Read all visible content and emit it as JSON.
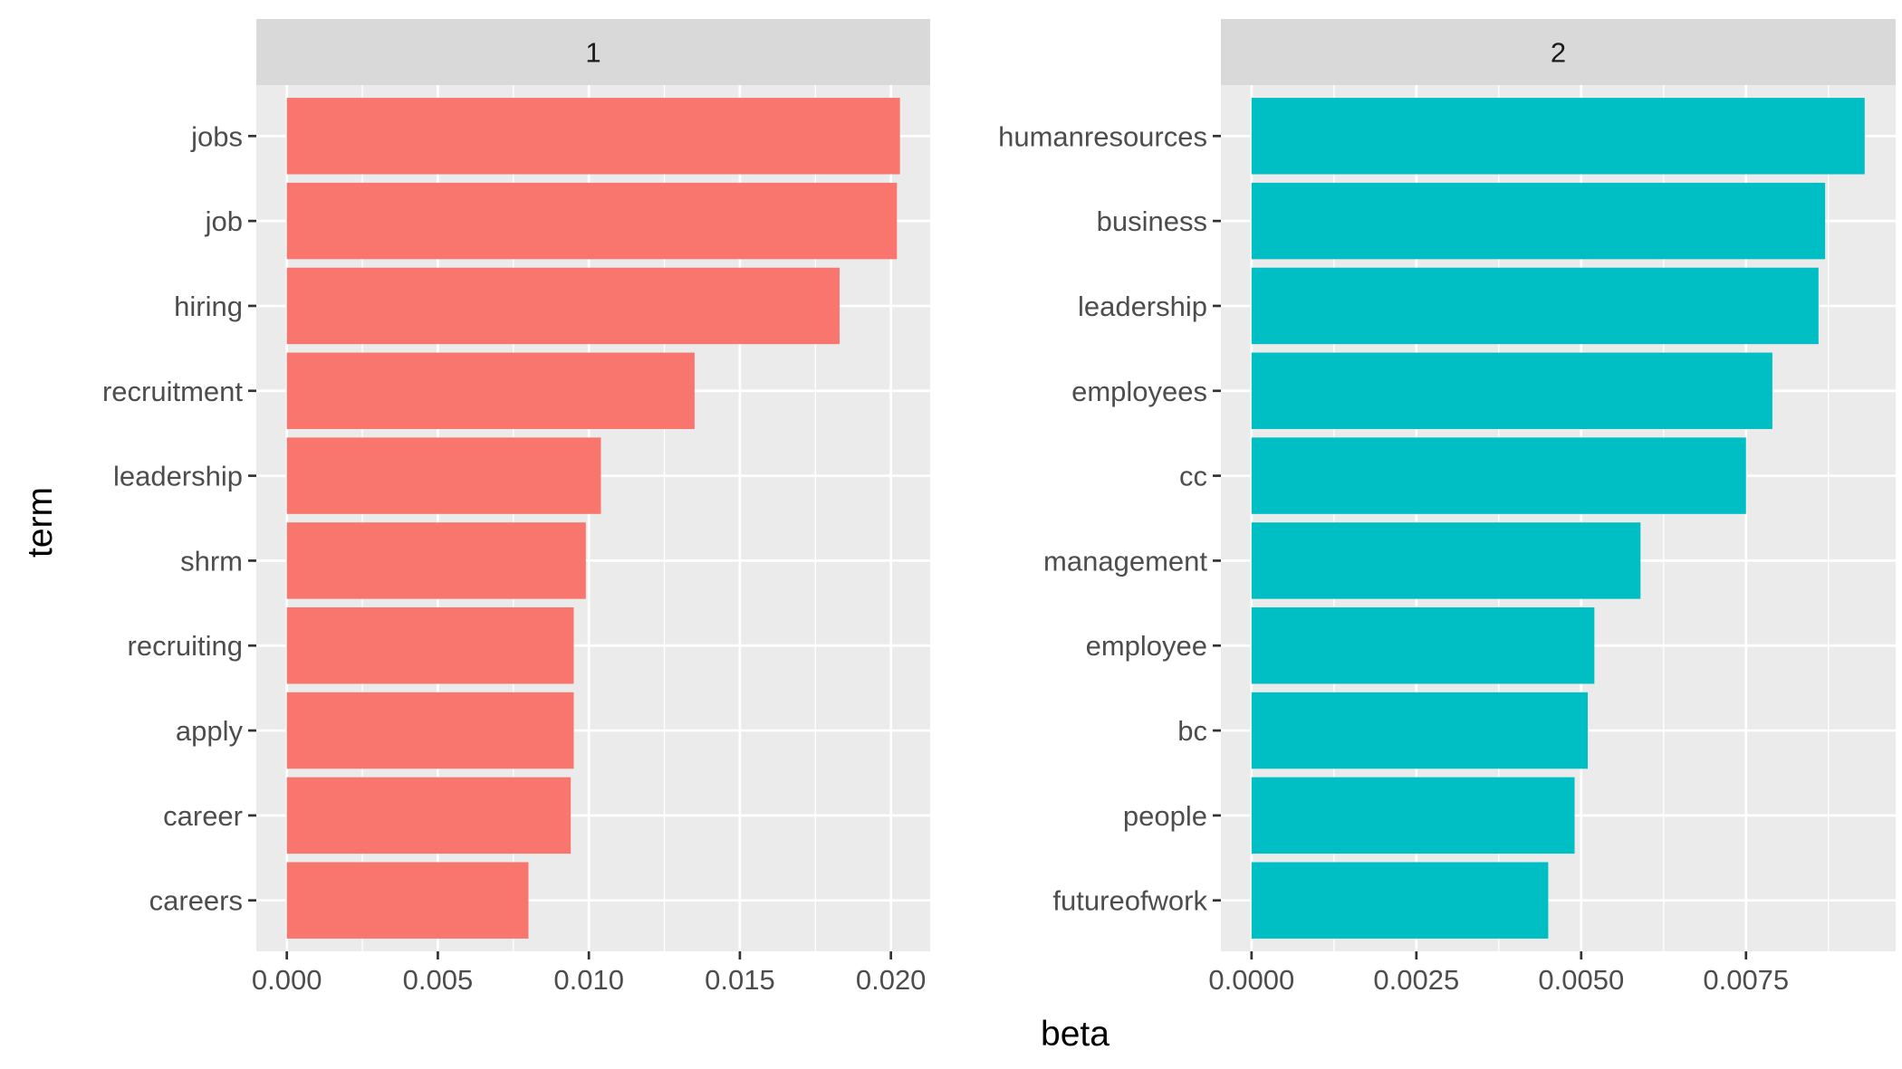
{
  "chart_data": {
    "type": "bar",
    "orientation": "horizontal",
    "xlabel": "beta",
    "ylabel": "term",
    "grid": true,
    "panels": [
      {
        "facet": "1",
        "color": "#F8766D",
        "categories": [
          "jobs",
          "job",
          "hiring",
          "recruitment",
          "leadership",
          "shrm",
          "recruiting",
          "apply",
          "career",
          "careers"
        ],
        "values": [
          0.0203,
          0.0202,
          0.0183,
          0.0135,
          0.0104,
          0.0099,
          0.0095,
          0.0095,
          0.0094,
          0.008
        ],
        "xlim": [
          -0.00101,
          0.0213
        ],
        "ticks": [
          0.0,
          0.005,
          0.01,
          0.015,
          0.02
        ],
        "tick_labels": [
          "0.000",
          "0.005",
          "0.010",
          "0.015",
          "0.020"
        ]
      },
      {
        "facet": "2",
        "color": "#00BFC4",
        "categories": [
          "humanresources",
          "business",
          "leadership",
          "employees",
          "cc",
          "management",
          "employee",
          "bc",
          "people",
          "futureofwork"
        ],
        "values": [
          0.0093,
          0.0087,
          0.0086,
          0.0079,
          0.0075,
          0.0059,
          0.0052,
          0.0051,
          0.0049,
          0.0045
        ],
        "xlim": [
          -0.000465,
          0.00977
        ],
        "ticks": [
          0.0,
          0.0025,
          0.005,
          0.0075
        ],
        "tick_labels": [
          "0.0000",
          "0.0025",
          "0.0050",
          "0.0075"
        ]
      }
    ]
  }
}
